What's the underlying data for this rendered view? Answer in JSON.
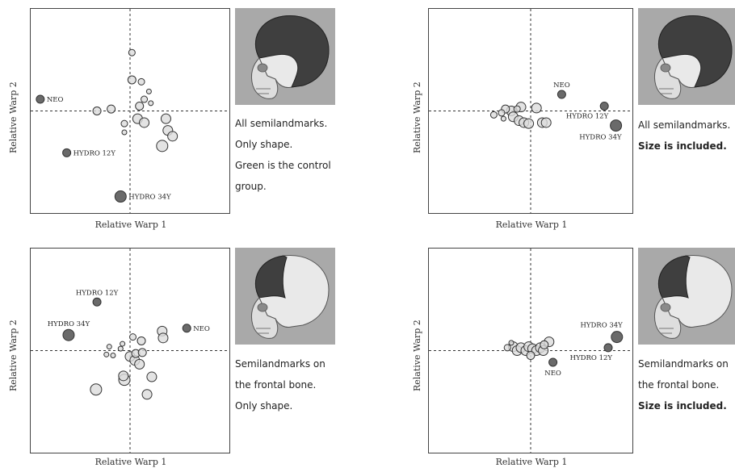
{
  "chart_data": [
    {
      "type": "scatter",
      "title": "",
      "xlabel": "Relative Warp 1",
      "ylabel": "Relative Warp 2",
      "xlim": [
        -1,
        1
      ],
      "ylim": [
        -1,
        1
      ],
      "grid": false,
      "skull_region": "all",
      "caption": [
        "All semilandmarks.",
        "Only shape.",
        "Green is the control",
        "group."
      ],
      "caption_bold": [
        false,
        false,
        false,
        false
      ],
      "control_points": [
        {
          "x": 0.02,
          "y": 0.6,
          "r": 4
        },
        {
          "x": 0.02,
          "y": 0.32,
          "r": 5
        },
        {
          "x": 0.12,
          "y": 0.3,
          "r": 4
        },
        {
          "x": -0.35,
          "y": 0.0,
          "r": 5
        },
        {
          "x": -0.2,
          "y": 0.02,
          "r": 5
        },
        {
          "x": -0.06,
          "y": -0.13,
          "r": 4
        },
        {
          "x": -0.06,
          "y": -0.22,
          "r": 3
        },
        {
          "x": 0.1,
          "y": 0.05,
          "r": 5
        },
        {
          "x": 0.15,
          "y": 0.12,
          "r": 4
        },
        {
          "x": 0.22,
          "y": 0.08,
          "r": 3
        },
        {
          "x": 0.2,
          "y": 0.2,
          "r": 3
        },
        {
          "x": 0.08,
          "y": -0.08,
          "r": 6
        },
        {
          "x": 0.15,
          "y": -0.12,
          "r": 6
        },
        {
          "x": 0.38,
          "y": -0.08,
          "r": 6
        },
        {
          "x": 0.4,
          "y": -0.2,
          "r": 6
        },
        {
          "x": 0.45,
          "y": -0.26,
          "r": 6
        },
        {
          "x": 0.34,
          "y": -0.36,
          "r": 7
        }
      ],
      "patients": [
        {
          "label": "NEO",
          "x": -0.95,
          "y": 0.12,
          "r": 5,
          "label_side": "right"
        },
        {
          "label": "HYDRO 12Y",
          "x": -0.67,
          "y": -0.43,
          "r": 5,
          "label_side": "right"
        },
        {
          "label": "HYDRO 34Y",
          "x": -0.1,
          "y": -0.88,
          "r": 7,
          "label_side": "right"
        }
      ]
    },
    {
      "type": "scatter",
      "title": "",
      "xlabel": "Relative Warp 1",
      "ylabel": "Relative Warp 2",
      "xlim": [
        -1,
        1
      ],
      "ylim": [
        -1,
        1
      ],
      "grid": false,
      "skull_region": "all",
      "caption": [
        "All semilandmarks.",
        "Size is included."
      ],
      "caption_bold": [
        false,
        true
      ],
      "control_points": [
        {
          "x": -0.2,
          "y": 0.0,
          "r": 6
        },
        {
          "x": -0.18,
          "y": -0.06,
          "r": 6
        },
        {
          "x": -0.12,
          "y": -0.1,
          "r": 6
        },
        {
          "x": -0.1,
          "y": 0.04,
          "r": 6
        },
        {
          "x": -0.07,
          "y": -0.12,
          "r": 6
        },
        {
          "x": -0.02,
          "y": -0.13,
          "r": 6
        },
        {
          "x": 0.06,
          "y": 0.03,
          "r": 6
        },
        {
          "x": 0.12,
          "y": -0.12,
          "r": 6
        },
        {
          "x": 0.16,
          "y": -0.12,
          "r": 6
        },
        {
          "x": -0.26,
          "y": 0.02,
          "r": 5
        },
        {
          "x": -0.3,
          "y": -0.02,
          "r": 4
        },
        {
          "x": -0.38,
          "y": -0.04,
          "r": 4
        },
        {
          "x": -0.28,
          "y": -0.08,
          "r": 3
        },
        {
          "x": -0.14,
          "y": 0.02,
          "r": 4
        }
      ],
      "patients": [
        {
          "label": "NEO",
          "x": 0.32,
          "y": 0.17,
          "r": 5,
          "label_side": "above"
        },
        {
          "label": "HYDRO 12Y",
          "x": 0.76,
          "y": 0.05,
          "r": 5,
          "label_side": "below-left"
        },
        {
          "label": "HYDRO 34Y",
          "x": 0.88,
          "y": -0.15,
          "r": 7,
          "label_side": "below-left"
        }
      ]
    },
    {
      "type": "scatter",
      "title": "",
      "xlabel": "Relative Warp 1",
      "ylabel": "Relative Warp 2",
      "xlim": [
        -1,
        1
      ],
      "ylim": [
        -1,
        1
      ],
      "grid": false,
      "skull_region": "frontal",
      "caption": [
        "Semilandmarks on",
        "the frontal bone.",
        "Only shape."
      ],
      "caption_bold": [
        false,
        false,
        false
      ],
      "control_points": [
        {
          "x": 0.0,
          "y": -0.06,
          "r": 6
        },
        {
          "x": 0.05,
          "y": -0.1,
          "r": 6
        },
        {
          "x": 0.1,
          "y": -0.14,
          "r": 6
        },
        {
          "x": 0.06,
          "y": -0.03,
          "r": 5
        },
        {
          "x": 0.13,
          "y": -0.02,
          "r": 5
        },
        {
          "x": 0.12,
          "y": 0.1,
          "r": 5
        },
        {
          "x": 0.03,
          "y": 0.14,
          "r": 4
        },
        {
          "x": -0.08,
          "y": 0.07,
          "r": 3
        },
        {
          "x": -0.1,
          "y": 0.02,
          "r": 3
        },
        {
          "x": -0.22,
          "y": 0.04,
          "r": 3
        },
        {
          "x": -0.25,
          "y": -0.04,
          "r": 3
        },
        {
          "x": -0.18,
          "y": -0.05,
          "r": 3
        },
        {
          "x": 0.34,
          "y": 0.2,
          "r": 6
        },
        {
          "x": 0.35,
          "y": 0.13,
          "r": 6
        },
        {
          "x": 0.23,
          "y": -0.27,
          "r": 6
        },
        {
          "x": -0.06,
          "y": -0.3,
          "r": 7
        },
        {
          "x": -0.07,
          "y": -0.26,
          "r": 6
        },
        {
          "x": -0.36,
          "y": -0.4,
          "r": 7
        },
        {
          "x": 0.18,
          "y": -0.45,
          "r": 6
        }
      ],
      "patients": [
        {
          "label": "NEO",
          "x": 0.6,
          "y": 0.23,
          "r": 5,
          "label_side": "right"
        },
        {
          "label": "HYDRO 12Y",
          "x": -0.35,
          "y": 0.5,
          "r": 5,
          "label_side": "above"
        },
        {
          "label": "HYDRO 34Y",
          "x": -0.65,
          "y": 0.16,
          "r": 7,
          "label_side": "above"
        }
      ]
    },
    {
      "type": "scatter",
      "title": "",
      "xlabel": "Relative Warp 1",
      "ylabel": "Relative Warp 2",
      "xlim": [
        -1,
        1
      ],
      "ylim": [
        -1,
        1
      ],
      "grid": false,
      "skull_region": "frontal",
      "caption": [
        "Semilandmarks on",
        "the frontal bone.",
        "Size is included."
      ],
      "caption_bold": [
        false,
        false,
        true
      ],
      "control_points": [
        {
          "x": -0.18,
          "y": 0.04,
          "r": 6
        },
        {
          "x": -0.14,
          "y": 0.0,
          "r": 6
        },
        {
          "x": -0.1,
          "y": 0.03,
          "r": 6
        },
        {
          "x": -0.05,
          "y": 0.0,
          "r": 6
        },
        {
          "x": -0.02,
          "y": 0.04,
          "r": 6
        },
        {
          "x": 0.02,
          "y": 0.02,
          "r": 6
        },
        {
          "x": 0.06,
          "y": 0.0,
          "r": 6
        },
        {
          "x": 0.1,
          "y": 0.03,
          "r": 6
        },
        {
          "x": 0.13,
          "y": 0.0,
          "r": 6
        },
        {
          "x": 0.19,
          "y": 0.09,
          "r": 6
        },
        {
          "x": -0.24,
          "y": 0.03,
          "r": 4
        },
        {
          "x": -0.2,
          "y": 0.08,
          "r": 3
        },
        {
          "x": 0.0,
          "y": -0.05,
          "r": 5
        },
        {
          "x": 0.14,
          "y": 0.06,
          "r": 5
        }
      ],
      "patients": [
        {
          "label": "NEO",
          "x": 0.23,
          "y": -0.12,
          "r": 5,
          "label_side": "below"
        },
        {
          "label": "HYDRO 34Y",
          "x": 0.89,
          "y": 0.14,
          "r": 7,
          "label_side": "above-left"
        },
        {
          "label": "HYDRO 12Y",
          "x": 0.8,
          "y": 0.03,
          "r": 5,
          "label_side": "below-left"
        }
      ]
    }
  ]
}
